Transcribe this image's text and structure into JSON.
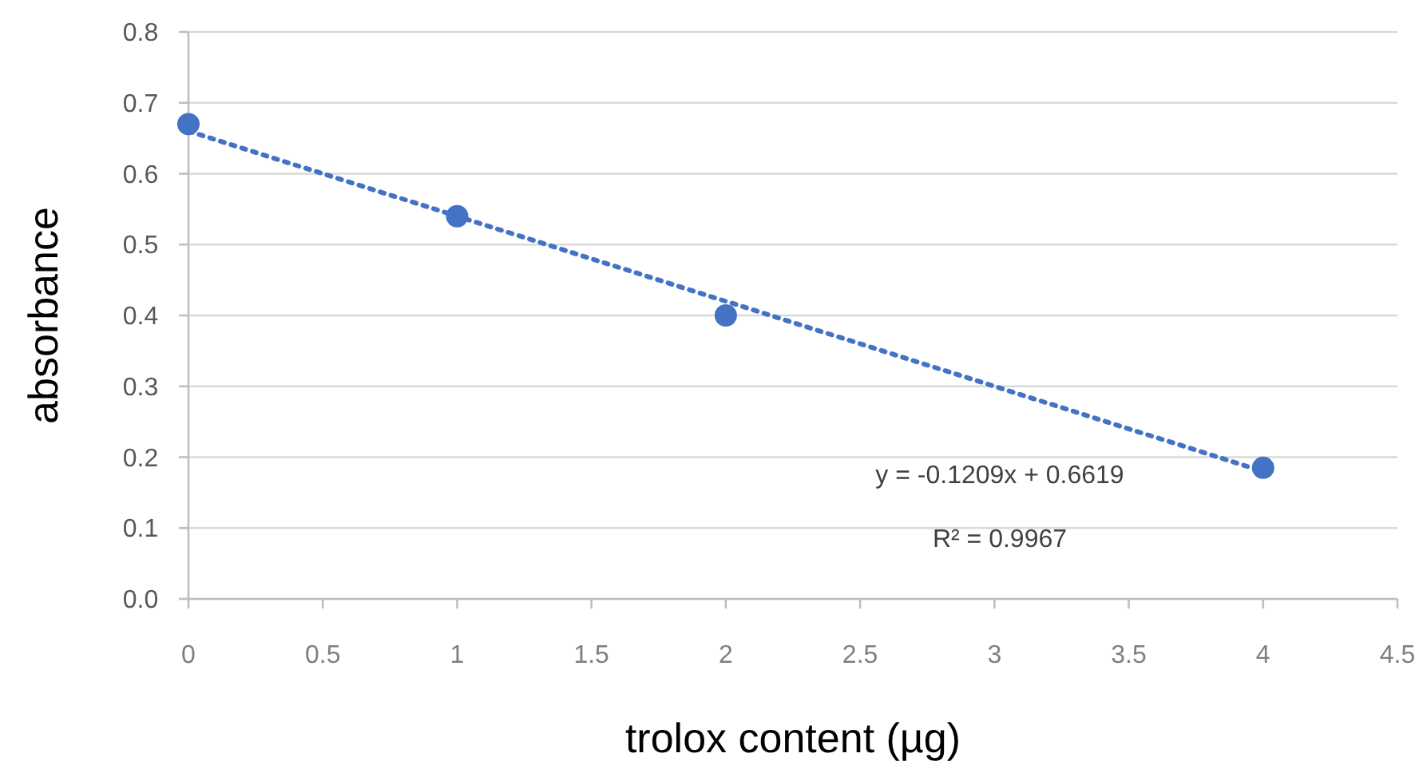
{
  "chart_data": {
    "type": "scatter",
    "xlabel": "trolox content (µg)",
    "ylabel": "absorbance",
    "x": [
      0,
      1,
      2,
      4
    ],
    "series": [
      {
        "color": "#4472c4",
        "values": [
          0.67,
          0.54,
          0.4,
          0.185
        ],
        "marker": "circle"
      },
      {
        "type": "line",
        "color": "#4472c4",
        "x": [
          0,
          4
        ],
        "values": [
          0.66,
          0.18
        ],
        "line_style": "dotted"
      }
    ],
    "xlim": [
      0,
      4.5
    ],
    "xticks": [
      0,
      0.5,
      1,
      1.5,
      2,
      2.5,
      3,
      3.5,
      4,
      4.5
    ],
    "ylim": [
      0,
      0.8
    ],
    "yticks": [
      {
        "value": 0,
        "label": "0.0"
      },
      0.1,
      0.2,
      0.3,
      0.4,
      0.5,
      0.6,
      0.7,
      0.8
    ],
    "grid": "y",
    "annotations": [
      "y = -0.1209x + 0.6619",
      "R² = 0.9967"
    ]
  }
}
